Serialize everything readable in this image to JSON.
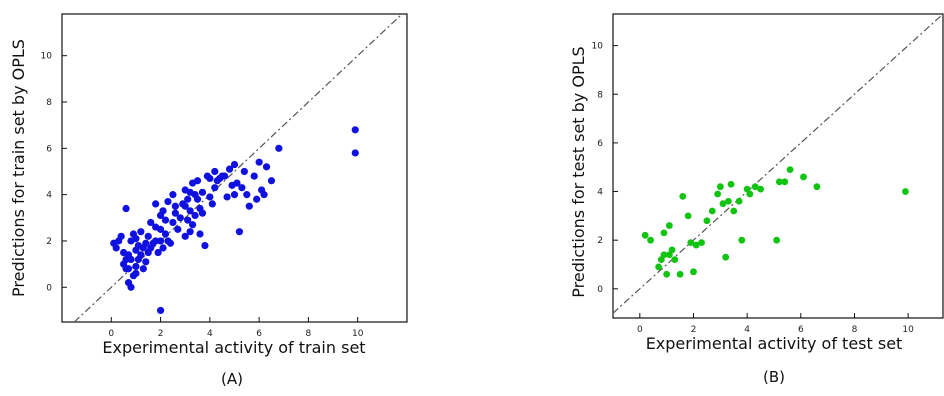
{
  "chart_data": [
    {
      "type": "scatter",
      "caption": "(A)",
      "xlabel": "Experimental activity of train set",
      "ylabel": "Predictions for train set by OPLS",
      "xlim": [
        -2,
        12
      ],
      "ylim": [
        -1.5,
        11.8
      ],
      "xticks": [
        "0",
        "2",
        "4",
        "6",
        "8",
        "10"
      ],
      "xtick_values": [
        0,
        2,
        4,
        6,
        8,
        10
      ],
      "yticks": [
        "0",
        "2",
        "4",
        "6",
        "8",
        "10"
      ],
      "ytick_values": [
        0,
        2,
        4,
        6,
        8,
        10
      ],
      "grid": false,
      "point_color": "#1010e0",
      "reference_line": "y = x, dash-dot",
      "x": [
        0.1,
        0.2,
        0.3,
        0.4,
        0.5,
        0.5,
        0.6,
        0.6,
        0.7,
        0.7,
        0.8,
        0.8,
        0.8,
        0.9,
        0.9,
        1.0,
        1.0,
        1.0,
        1.1,
        1.1,
        1.2,
        1.2,
        1.3,
        1.3,
        1.4,
        1.4,
        1.5,
        1.5,
        1.6,
        1.6,
        1.7,
        1.8,
        1.8,
        1.9,
        2.0,
        2.0,
        2.0,
        2.1,
        2.1,
        2.2,
        2.2,
        2.3,
        2.3,
        2.4,
        2.5,
        2.5,
        2.6,
        2.7,
        2.8,
        2.9,
        3.0,
        3.0,
        3.0,
        3.1,
        3.1,
        3.2,
        3.2,
        3.3,
        3.3,
        3.4,
        3.4,
        3.5,
        3.5,
        3.6,
        3.6,
        3.7,
        3.7,
        3.8,
        3.9,
        4.0,
        4.0,
        4.1,
        4.2,
        4.2,
        4.3,
        4.4,
        4.6,
        4.7,
        4.8,
        4.9,
        5.0,
        5.0,
        5.1,
        5.2,
        5.3,
        5.4,
        5.5,
        5.6,
        5.8,
        5.9,
        6.0,
        6.1,
        6.2,
        6.3,
        6.5,
        6.8,
        9.9,
        9.9,
        2.0,
        0.7,
        1.0,
        0.6,
        1.8,
        3.2,
        2.6,
        4.5
      ],
      "y": [
        1.9,
        1.7,
        2.0,
        2.2,
        1.5,
        1.0,
        3.4,
        0.8,
        0.2,
        1.4,
        2.0,
        1.2,
        0.0,
        2.3,
        0.5,
        1.6,
        2.1,
        0.9,
        1.8,
        1.2,
        1.4,
        2.4,
        1.7,
        0.8,
        1.9,
        1.1,
        2.2,
        1.5,
        1.7,
        2.8,
        1.9,
        3.6,
        2.6,
        1.5,
        2.0,
        3.1,
        2.5,
        1.7,
        3.3,
        2.9,
        2.3,
        3.7,
        2.0,
        1.9,
        4.0,
        2.8,
        3.2,
        2.5,
        3.0,
        3.6,
        3.5,
        2.2,
        4.2,
        2.9,
        3.8,
        3.3,
        2.4,
        4.5,
        2.7,
        4.0,
        3.1,
        3.8,
        4.6,
        2.3,
        3.4,
        4.1,
        3.2,
        1.8,
        4.8,
        3.9,
        4.7,
        3.6,
        4.3,
        5.0,
        4.6,
        4.7,
        4.8,
        3.9,
        5.1,
        4.4,
        5.3,
        4.0,
        4.5,
        2.4,
        4.3,
        5.0,
        4.0,
        3.5,
        4.8,
        3.8,
        5.4,
        4.2,
        4.0,
        5.2,
        4.6,
        6.0,
        6.8,
        5.8,
        -1.0,
        0.8,
        0.6,
        1.2,
        2.0,
        4.1,
        3.5,
        4.8
      ]
    },
    {
      "type": "scatter",
      "caption": "(B)",
      "xlabel": "Experimental activity of test set",
      "ylabel": "Predictions for test set by OPLS",
      "xlim": [
        -1,
        11.3
      ],
      "ylim": [
        -1.2,
        11.3
      ],
      "xticks": [
        "0",
        "2",
        "4",
        "6",
        "8",
        "10"
      ],
      "xtick_values": [
        0,
        2,
        4,
        6,
        8,
        10
      ],
      "yticks": [
        "0",
        "2",
        "4",
        "6",
        "8",
        "10"
      ],
      "ytick_values": [
        0,
        2,
        4,
        6,
        8,
        10
      ],
      "grid": false,
      "point_color": "#11c411",
      "reference_line": "y = x, dash-dot",
      "x": [
        0.2,
        0.4,
        0.7,
        0.8,
        0.9,
        1.0,
        1.1,
        1.2,
        1.3,
        1.5,
        1.6,
        1.8,
        1.9,
        2.0,
        2.1,
        2.3,
        2.5,
        2.7,
        2.9,
        3.0,
        3.1,
        3.2,
        3.3,
        3.4,
        3.5,
        3.7,
        3.8,
        4.0,
        4.1,
        4.3,
        4.5,
        5.1,
        5.2,
        5.4,
        5.6,
        6.1,
        6.6,
        9.9,
        0.9,
        1.1
      ],
      "y": [
        2.2,
        2.0,
        0.9,
        1.2,
        2.3,
        0.6,
        1.4,
        1.6,
        1.2,
        0.6,
        3.8,
        3.0,
        1.9,
        0.7,
        1.8,
        1.9,
        2.8,
        3.2,
        3.9,
        4.2,
        3.5,
        1.3,
        3.6,
        4.3,
        3.2,
        3.6,
        2.0,
        4.1,
        3.9,
        4.2,
        4.1,
        2.0,
        4.4,
        4.4,
        4.9,
        4.6,
        4.2,
        4.0,
        1.4,
        2.6
      ]
    }
  ]
}
